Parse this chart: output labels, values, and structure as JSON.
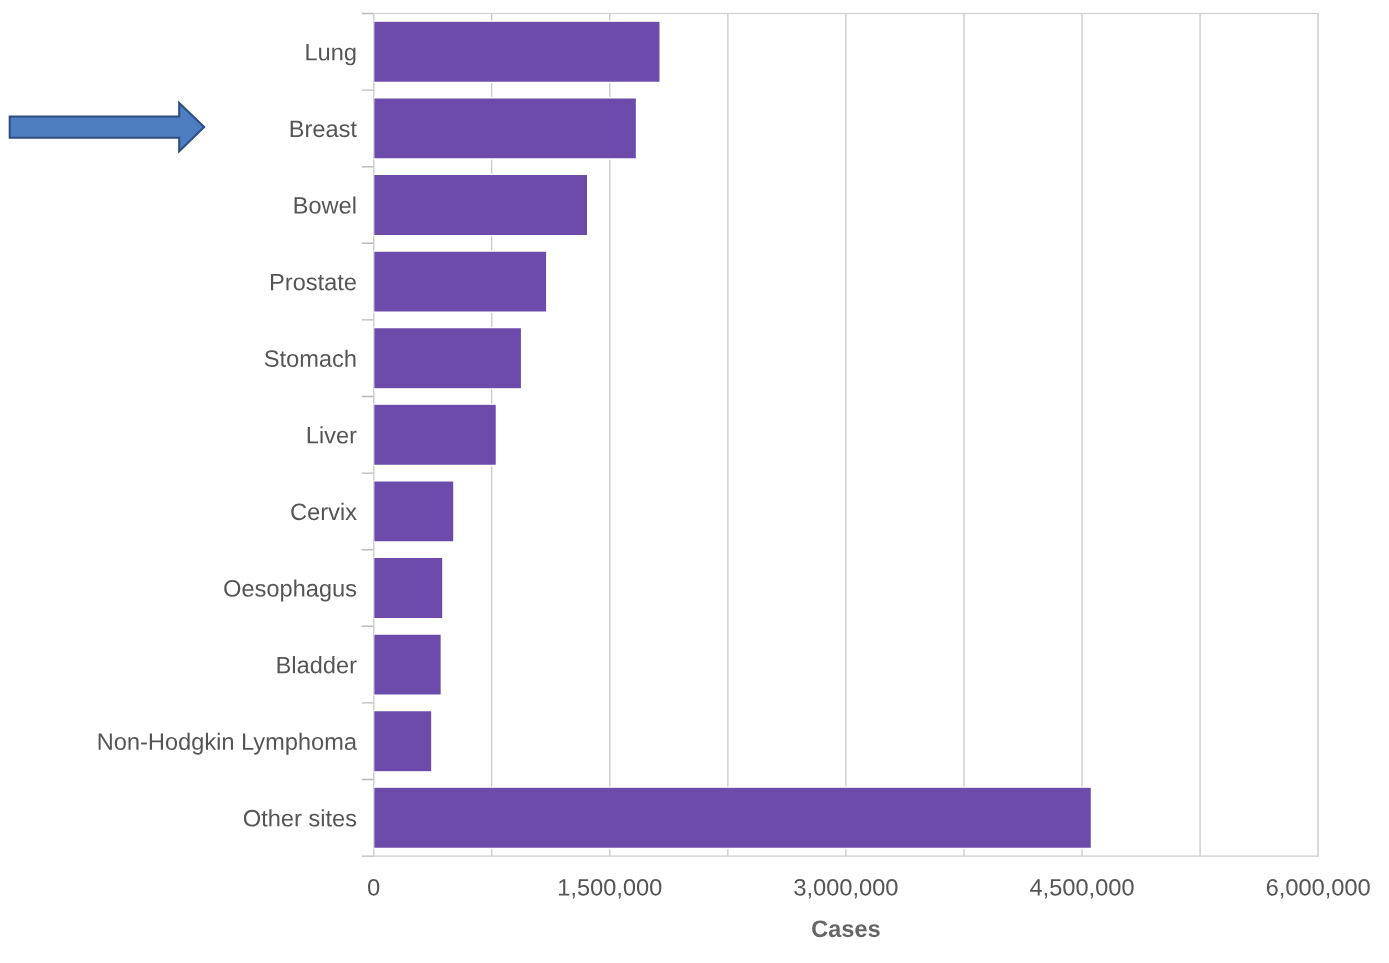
{
  "chart_data": {
    "type": "bar",
    "orientation": "horizontal",
    "xlabel": "Cases",
    "categories": [
      "Lung",
      "Breast",
      "Bowel",
      "Prostate",
      "Stomach",
      "Liver",
      "Cervix",
      "Oesophagus",
      "Bladder",
      "Non-Hodgkin Lymphoma",
      "Other sites"
    ],
    "values": [
      1820000,
      1670000,
      1360000,
      1100000,
      940000,
      780000,
      510000,
      440000,
      430000,
      370000,
      4560000
    ],
    "color": "#6d4baa",
    "xlim": [
      0,
      6000000
    ],
    "xticks": [
      0,
      {
        "value": 750000,
        "label": null
      },
      {
        "value": 1500000,
        "label": "1,500,000"
      },
      {
        "value": 2250000,
        "label": null
      },
      {
        "value": 3000000,
        "label": "3,000,000"
      },
      {
        "value": 3750000,
        "label": null
      },
      {
        "value": 4500000,
        "label": "4,500,000"
      },
      {
        "value": 5250000,
        "label": null
      },
      {
        "value": 6000000,
        "label": "6,000,000"
      }
    ],
    "grid": "x"
  }
}
